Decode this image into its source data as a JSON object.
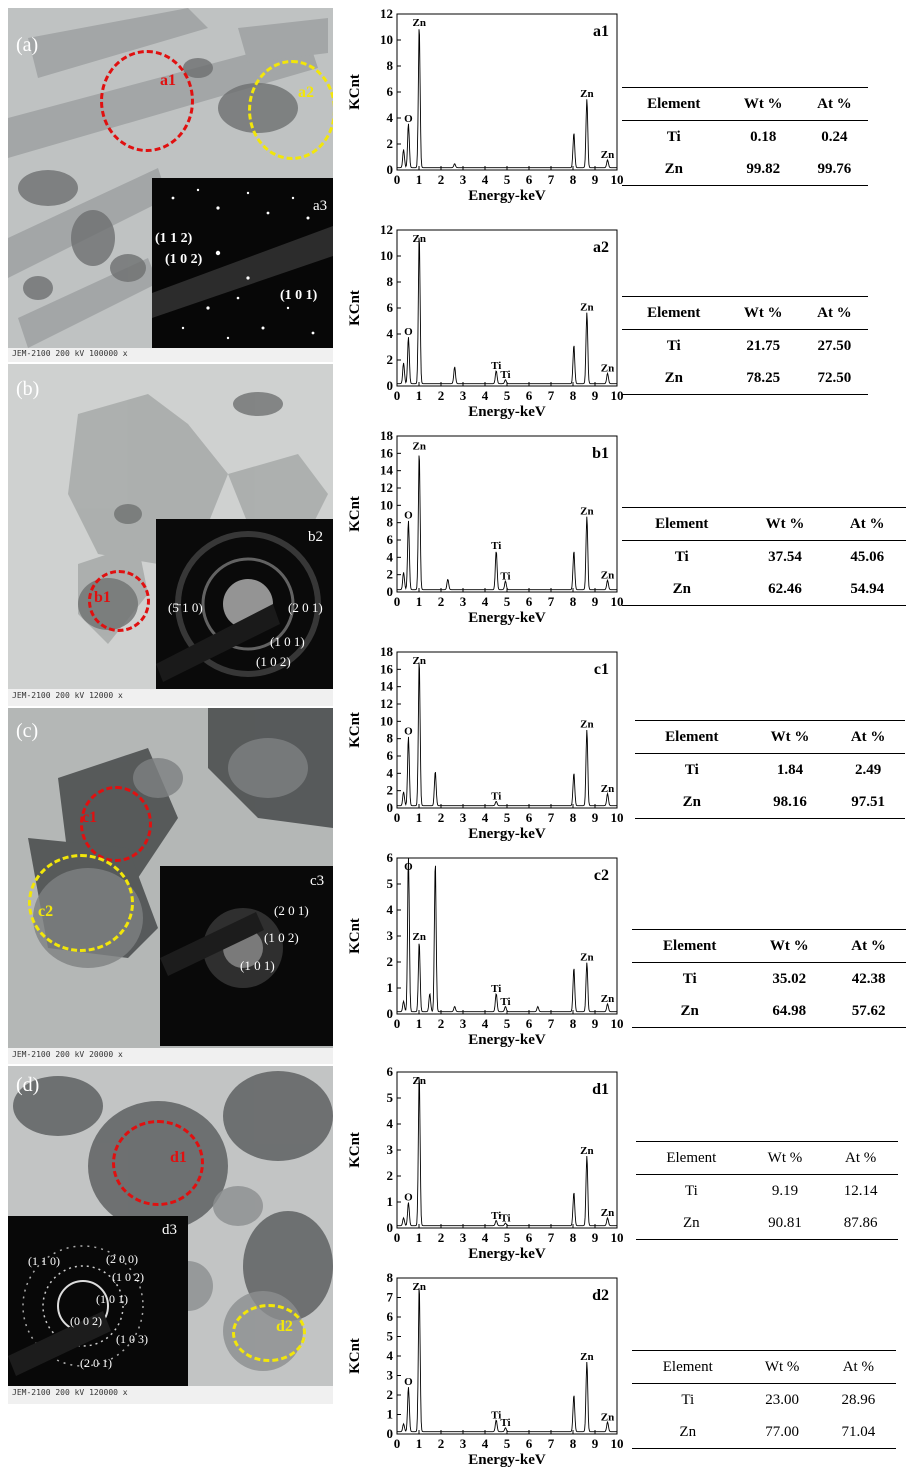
{
  "panels": [
    {
      "id": "a",
      "label": "(a)",
      "bg": "#b9bcbc",
      "circles": [
        {
          "label": "a1",
          "color": "#e01010"
        },
        {
          "label": "a2",
          "color": "#f2e60a"
        }
      ],
      "inset": {
        "label": "a3",
        "planes": [
          "(1 1 2)",
          "(1 0 2)",
          "(1 0 1)"
        ]
      },
      "footer": "JEM-2100 200 kV  100000 x"
    },
    {
      "id": "b",
      "label": "(b)",
      "bg": "#c8cac9",
      "circles": [
        {
          "label": "b1",
          "color": "#e01010"
        }
      ],
      "inset": {
        "label": "b2",
        "planes": [
          "(5̄ 1 0)",
          "(2 0 1)",
          "(1 0 1)",
          "(1 0 2)"
        ]
      },
      "footer": "JEM-2100 200 kV  12000 x"
    },
    {
      "id": "c",
      "label": "(c)",
      "bg": "#a9acab",
      "circles": [
        {
          "label": "c1",
          "color": "#e01010"
        },
        {
          "label": "c2",
          "color": "#f2e60a"
        }
      ],
      "inset": {
        "label": "c3",
        "planes": [
          "(2 0 1)",
          "(1 0 2)",
          "(1 0 1)"
        ]
      },
      "footer": "JEM-2100 200 kV  20000 x"
    },
    {
      "id": "d",
      "label": "(d)",
      "bg": "#b3b5b5",
      "circles": [
        {
          "label": "d1",
          "color": "#e01010"
        },
        {
          "label": "d2",
          "color": "#f2e60a"
        }
      ],
      "inset": {
        "label": "d3",
        "planes": [
          "(1 1 0)",
          "(2 0 0)",
          "(1 0 2)",
          "(1 0 1)",
          "(0 0 2)",
          "(1 0 3)",
          "(2 0 1)"
        ]
      },
      "footer": "JEM-2100 200 kV  120000 x"
    }
  ],
  "chart_data": [
    {
      "type": "line",
      "label": "a1",
      "xlabel": "Energy-keV",
      "ylabel": "KCnt",
      "xlim": [
        0,
        10
      ],
      "ylim": [
        0,
        12
      ],
      "xticks": [
        0,
        1,
        2,
        3,
        4,
        5,
        6,
        7,
        8,
        9,
        10
      ],
      "yticks": [
        0,
        2,
        4,
        6,
        8,
        10,
        12
      ],
      "peaks": [
        [
          0.3,
          1.4
        ],
        [
          0.52,
          3.4
        ],
        [
          1.01,
          11.0
        ],
        [
          2.62,
          0.3
        ],
        [
          8.04,
          2.7
        ],
        [
          8.63,
          5.3
        ],
        [
          9.57,
          0.6
        ]
      ],
      "annotations": [
        {
          "text": "O",
          "x": 0.52,
          "y": 3.4
        },
        {
          "text": "Zn",
          "x": 1.01,
          "y": 11.0
        },
        {
          "text": "Zn",
          "x": 8.63,
          "y": 5.3
        },
        {
          "text": "Zn",
          "x": 9.57,
          "y": 0.6
        }
      ],
      "table": {
        "headers": [
          "Element",
          "Wt %",
          "At %"
        ],
        "rows": [
          [
            "Ti",
            "0.18",
            "0.24"
          ],
          [
            "Zn",
            "99.82",
            "99.76"
          ]
        ]
      }
    },
    {
      "type": "line",
      "label": "a2",
      "xlabel": "Energy-keV",
      "ylabel": "KCnt",
      "xlim": [
        0,
        10
      ],
      "ylim": [
        0,
        12
      ],
      "xticks": [
        0,
        1,
        2,
        3,
        4,
        5,
        6,
        7,
        8,
        9,
        10
      ],
      "yticks": [
        0,
        2,
        4,
        6,
        8,
        10,
        12
      ],
      "peaks": [
        [
          0.3,
          1.6
        ],
        [
          0.52,
          3.6
        ],
        [
          1.01,
          11.6
        ],
        [
          2.62,
          1.3
        ],
        [
          4.51,
          1.0
        ],
        [
          4.93,
          0.3
        ],
        [
          8.04,
          3.0
        ],
        [
          8.63,
          5.5
        ],
        [
          9.57,
          0.8
        ]
      ],
      "annotations": [
        {
          "text": "O",
          "x": 0.52,
          "y": 3.6
        },
        {
          "text": "Zn",
          "x": 1.01,
          "y": 11.6
        },
        {
          "text": "Ti",
          "x": 4.51,
          "y": 1.0
        },
        {
          "text": "Ti",
          "x": 4.93,
          "y": 0.3
        },
        {
          "text": "Zn",
          "x": 8.63,
          "y": 5.5
        },
        {
          "text": "Zn",
          "x": 9.57,
          "y": 0.8
        }
      ],
      "table": {
        "headers": [
          "Element",
          "Wt %",
          "At %"
        ],
        "rows": [
          [
            "Ti",
            "21.75",
            "27.50"
          ],
          [
            "Zn",
            "78.25",
            "72.50"
          ]
        ]
      }
    },
    {
      "type": "line",
      "label": "b1",
      "xlabel": "Energy-keV",
      "ylabel": "KCnt",
      "xlim": [
        0,
        10
      ],
      "ylim": [
        0,
        18
      ],
      "xticks": [
        0,
        1,
        2,
        3,
        4,
        5,
        6,
        7,
        8,
        9,
        10
      ],
      "yticks": [
        0,
        2,
        4,
        6,
        8,
        10,
        12,
        14,
        16,
        18
      ],
      "peaks": [
        [
          0.3,
          2.0
        ],
        [
          0.52,
          8.0
        ],
        [
          1.01,
          16.0
        ],
        [
          2.31,
          1.2
        ],
        [
          4.51,
          4.5
        ],
        [
          4.93,
          1.0
        ],
        [
          8.04,
          4.5
        ],
        [
          8.63,
          8.5
        ],
        [
          9.57,
          1.1
        ]
      ],
      "annotations": [
        {
          "text": "O",
          "x": 0.52,
          "y": 8.0
        },
        {
          "text": "Zn",
          "x": 1.01,
          "y": 16.0
        },
        {
          "text": "Ti",
          "x": 4.51,
          "y": 4.5
        },
        {
          "text": "Ti",
          "x": 4.93,
          "y": 1.0
        },
        {
          "text": "Zn",
          "x": 8.63,
          "y": 8.5
        },
        {
          "text": "Zn",
          "x": 9.57,
          "y": 1.1
        }
      ],
      "table": {
        "headers": [
          "Element",
          "Wt %",
          "At %"
        ],
        "rows": [
          [
            "Ti",
            "37.54",
            "45.06"
          ],
          [
            "Zn",
            "62.46",
            "54.94"
          ]
        ]
      }
    },
    {
      "type": "line",
      "label": "c1",
      "xlabel": "Energy-keV",
      "ylabel": "KCnt",
      "xlim": [
        0,
        10
      ],
      "ylim": [
        0,
        18
      ],
      "xticks": [
        0,
        1,
        2,
        3,
        4,
        5,
        6,
        7,
        8,
        9,
        10
      ],
      "yticks": [
        0,
        2,
        4,
        6,
        8,
        10,
        12,
        14,
        16,
        18
      ],
      "peaks": [
        [
          0.3,
          1.6
        ],
        [
          0.52,
          8.0
        ],
        [
          1.01,
          17.0
        ],
        [
          1.74,
          4.0
        ],
        [
          4.51,
          0.5
        ],
        [
          8.04,
          3.8
        ],
        [
          8.63,
          8.8
        ],
        [
          9.57,
          1.4
        ]
      ],
      "annotations": [
        {
          "text": "O",
          "x": 0.52,
          "y": 8.0
        },
        {
          "text": "Zn",
          "x": 1.01,
          "y": 17.0
        },
        {
          "text": "Ti",
          "x": 4.51,
          "y": 0.5
        },
        {
          "text": "Zn",
          "x": 8.63,
          "y": 8.8
        },
        {
          "text": "Zn",
          "x": 9.57,
          "y": 1.4
        }
      ],
      "table": {
        "headers": [
          "Element",
          "Wt %",
          "At %"
        ],
        "rows": [
          [
            "Ti",
            "1.84",
            "2.49"
          ],
          [
            "Zn",
            "98.16",
            "97.51"
          ]
        ]
      }
    },
    {
      "type": "line",
      "label": "c2",
      "xlabel": "Energy-keV",
      "ylabel": "KCnt",
      "xlim": [
        0,
        10
      ],
      "ylim": [
        0,
        6
      ],
      "xticks": [
        0,
        1,
        2,
        3,
        4,
        5,
        6,
        7,
        8,
        9,
        10
      ],
      "yticks": [
        0,
        1,
        2,
        3,
        4,
        5,
        6
      ],
      "peaks": [
        [
          0.3,
          0.4
        ],
        [
          0.52,
          6.1
        ],
        [
          1.01,
          2.7
        ],
        [
          1.49,
          0.7
        ],
        [
          1.74,
          5.8
        ],
        [
          2.62,
          0.2
        ],
        [
          4.51,
          0.7
        ],
        [
          4.93,
          0.2
        ],
        [
          6.4,
          0.2
        ],
        [
          8.04,
          1.7
        ],
        [
          8.63,
          1.9
        ],
        [
          9.57,
          0.3
        ]
      ],
      "annotations": [
        {
          "text": "O",
          "x": 0.52,
          "y": 6.1
        },
        {
          "text": "Zn",
          "x": 1.01,
          "y": 2.7
        },
        {
          "text": "Ti",
          "x": 4.51,
          "y": 0.7
        },
        {
          "text": "Ti",
          "x": 4.93,
          "y": 0.2
        },
        {
          "text": "Zn",
          "x": 8.63,
          "y": 1.9
        },
        {
          "text": "Zn",
          "x": 9.57,
          "y": 0.3
        }
      ],
      "table": {
        "headers": [
          "Element",
          "Wt %",
          "At %"
        ],
        "rows": [
          [
            "Ti",
            "35.02",
            "42.38"
          ],
          [
            "Zn",
            "64.98",
            "57.62"
          ]
        ]
      }
    },
    {
      "type": "line",
      "label": "d1",
      "xlabel": "Energy-keV",
      "ylabel": "KCnt",
      "xlim": [
        0,
        10
      ],
      "ylim": [
        0,
        6
      ],
      "xticks": [
        0,
        1,
        2,
        3,
        4,
        5,
        6,
        7,
        8,
        9,
        10
      ],
      "yticks": [
        0,
        1,
        2,
        3,
        4,
        5,
        6
      ],
      "peaks": [
        [
          0.3,
          0.3
        ],
        [
          0.52,
          0.9
        ],
        [
          1.01,
          5.9
        ],
        [
          4.51,
          0.2
        ],
        [
          4.93,
          0.1
        ],
        [
          8.04,
          1.3
        ],
        [
          8.63,
          2.7
        ],
        [
          9.57,
          0.3
        ]
      ],
      "annotations": [
        {
          "text": "O",
          "x": 0.52,
          "y": 0.9
        },
        {
          "text": "Zn",
          "x": 1.01,
          "y": 5.9
        },
        {
          "text": "Ti",
          "x": 4.51,
          "y": 0.2
        },
        {
          "text": "Ti",
          "x": 4.93,
          "y": 0.1
        },
        {
          "text": "Zn",
          "x": 8.63,
          "y": 2.7
        },
        {
          "text": "Zn",
          "x": 9.57,
          "y": 0.3
        }
      ],
      "table": {
        "headers": [
          "Element",
          "Wt %",
          "At %"
        ],
        "rows": [
          [
            "Ti",
            "9.19",
            "12.14"
          ],
          [
            "Zn",
            "90.81",
            "87.86"
          ]
        ]
      }
    },
    {
      "type": "line",
      "label": "d2",
      "xlabel": "Energy-keV",
      "ylabel": "KCnt",
      "xlim": [
        0,
        10
      ],
      "ylim": [
        0,
        8
      ],
      "xticks": [
        0,
        1,
        2,
        3,
        4,
        5,
        6,
        7,
        8,
        9,
        10
      ],
      "yticks": [
        0,
        1,
        2,
        3,
        4,
        5,
        6,
        7,
        8
      ],
      "peaks": [
        [
          0.3,
          0.4
        ],
        [
          0.52,
          2.3
        ],
        [
          1.01,
          7.6
        ],
        [
          4.51,
          0.6
        ],
        [
          4.93,
          0.2
        ],
        [
          8.04,
          1.9
        ],
        [
          8.63,
          3.6
        ],
        [
          9.57,
          0.5
        ]
      ],
      "annotations": [
        {
          "text": "O",
          "x": 0.52,
          "y": 2.3
        },
        {
          "text": "Zn",
          "x": 1.01,
          "y": 7.6
        },
        {
          "text": "Ti",
          "x": 4.51,
          "y": 0.6
        },
        {
          "text": "Ti",
          "x": 4.93,
          "y": 0.2
        },
        {
          "text": "Zn",
          "x": 8.63,
          "y": 3.6
        },
        {
          "text": "Zn",
          "x": 9.57,
          "y": 0.5
        }
      ],
      "table": {
        "headers": [
          "Element",
          "Wt %",
          "At %"
        ],
        "rows": [
          [
            "Ti",
            "23.00",
            "28.96"
          ],
          [
            "Zn",
            "77.00",
            "71.04"
          ]
        ]
      }
    }
  ]
}
